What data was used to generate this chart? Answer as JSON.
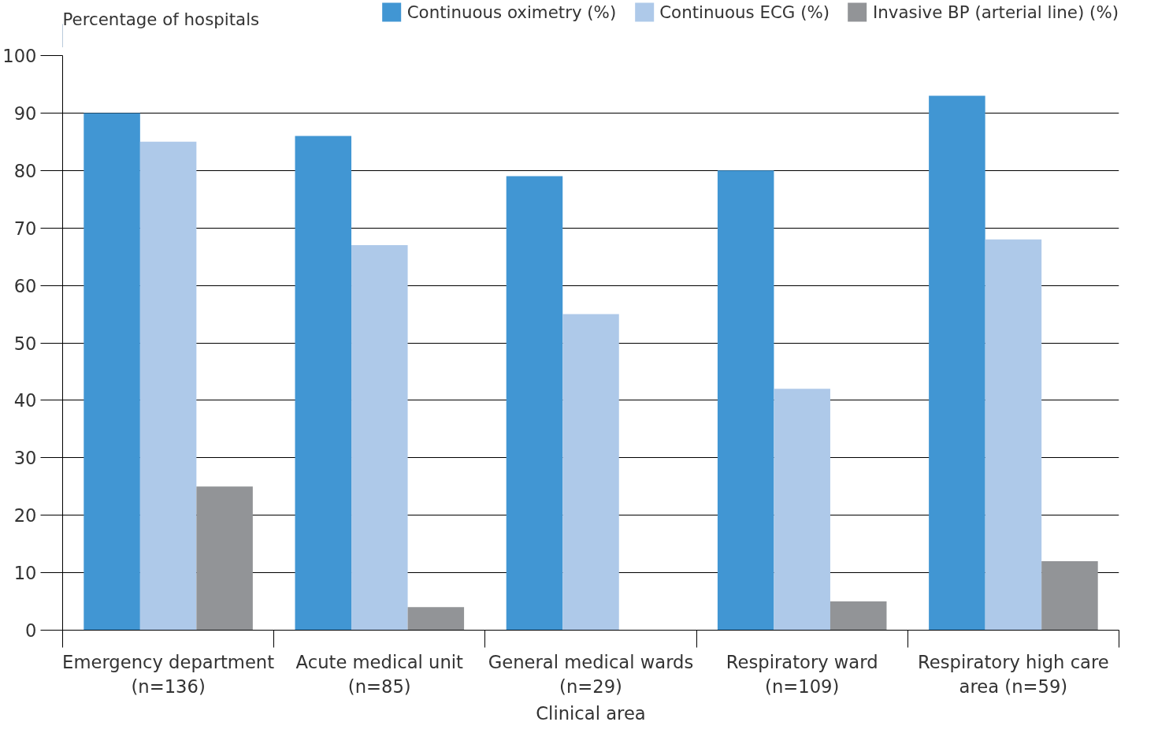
{
  "chart_data": {
    "type": "bar",
    "ylabel": "Percentage of hospitals",
    "xlabel": "Clinical area",
    "categories": [
      "Emergency department (n=136)",
      "Acute medical unit (n=85)",
      "General medical wards (n=29)",
      "Respiratory ward (n=109)",
      "Respiratory high care area (n=59)"
    ],
    "series": [
      {
        "name": "Continuous oximetry (%)",
        "color": "#4196d3",
        "values": [
          90,
          86,
          79,
          80,
          93
        ]
      },
      {
        "name": "Continuous ECG (%)",
        "color": "#aec9e9",
        "values": [
          85,
          67,
          55,
          42,
          68
        ]
      },
      {
        "name": "Invasive BP (arterial line) (%)",
        "color": "#929497",
        "values": [
          25,
          4,
          0,
          5,
          12
        ]
      }
    ],
    "ylim": [
      0,
      100
    ],
    "yticks": [
      0,
      10,
      20,
      30,
      40,
      50,
      60,
      70,
      80,
      90,
      100
    ],
    "grid": "y",
    "legend": "top right"
  }
}
